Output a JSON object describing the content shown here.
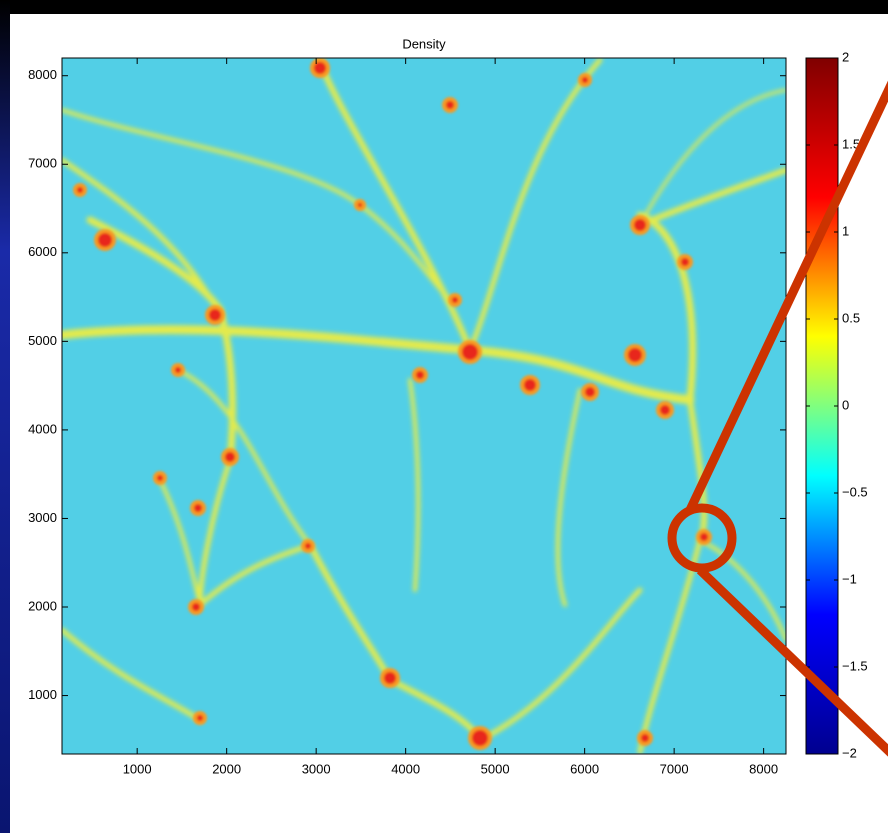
{
  "chart_data": {
    "type": "heatmap",
    "title": "Density",
    "xlim": [
      160,
      8250
    ],
    "xticks": [
      1000,
      2000,
      3000,
      4000,
      5000,
      6000,
      7000,
      8000
    ],
    "ylim": [
      340,
      8200
    ],
    "yticks": [
      1000,
      2000,
      3000,
      4000,
      5000,
      6000,
      7000,
      8000
    ],
    "colorbar": {
      "clim": [
        -2,
        2
      ],
      "ticks": [
        2,
        1.5,
        1,
        0.5,
        0,
        {
          "value": -0.5,
          "label": "−0.5"
        },
        {
          "value": -1,
          "label": "−1"
        },
        {
          "value": -1.5,
          "label": "−1.5"
        },
        {
          "value": -2,
          "label": "−2"
        }
      ],
      "colors": [
        "#00008f",
        "#0000ff",
        "#00ffff",
        "#ffff00",
        "#ff0000",
        "#800000"
      ]
    }
  }
}
